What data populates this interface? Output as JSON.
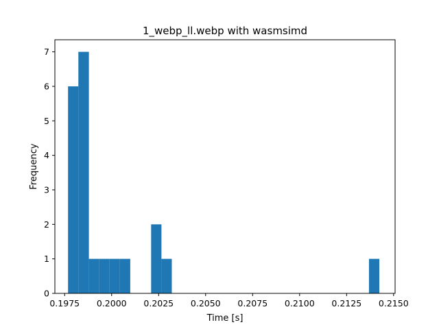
{
  "chart_data": {
    "type": "bar",
    "title": "1_webp_ll.webp with wasmsimd",
    "xlabel": "Time [s]",
    "ylabel": "Frequency",
    "xlim": [
      0.19698,
      0.21508
    ],
    "ylim": [
      0,
      7.35
    ],
    "grid": false,
    "legend": "none",
    "bar_color": "#1f77b4",
    "bins": [
      {
        "x0": 0.19768,
        "x1": 0.19823,
        "value": 6
      },
      {
        "x0": 0.19823,
        "x1": 0.19879,
        "value": 7
      },
      {
        "x0": 0.19879,
        "x1": 0.19934,
        "value": 1
      },
      {
        "x0": 0.19934,
        "x1": 0.19989,
        "value": 1
      },
      {
        "x0": 0.19989,
        "x1": 0.20044,
        "value": 1
      },
      {
        "x0": 0.20044,
        "x1": 0.20099,
        "value": 1
      },
      {
        "x0": 0.2021,
        "x1": 0.20265,
        "value": 2
      },
      {
        "x0": 0.20265,
        "x1": 0.2032,
        "value": 1
      },
      {
        "x0": 0.21369,
        "x1": 0.21424,
        "value": 1
      }
    ],
    "x_ticks": [
      {
        "value": 0.1975,
        "label": "0.1975"
      },
      {
        "value": 0.2,
        "label": "0.2000"
      },
      {
        "value": 0.2025,
        "label": "0.2025"
      },
      {
        "value": 0.205,
        "label": "0.2050"
      },
      {
        "value": 0.2075,
        "label": "0.2075"
      },
      {
        "value": 0.21,
        "label": "0.2100"
      },
      {
        "value": 0.2125,
        "label": "0.2125"
      },
      {
        "value": 0.215,
        "label": "0.2150"
      }
    ],
    "y_ticks": [
      {
        "value": 0,
        "label": "0"
      },
      {
        "value": 1,
        "label": "1"
      },
      {
        "value": 2,
        "label": "2"
      },
      {
        "value": 3,
        "label": "3"
      },
      {
        "value": 4,
        "label": "4"
      },
      {
        "value": 5,
        "label": "5"
      },
      {
        "value": 6,
        "label": "6"
      },
      {
        "value": 7,
        "label": "7"
      }
    ]
  }
}
